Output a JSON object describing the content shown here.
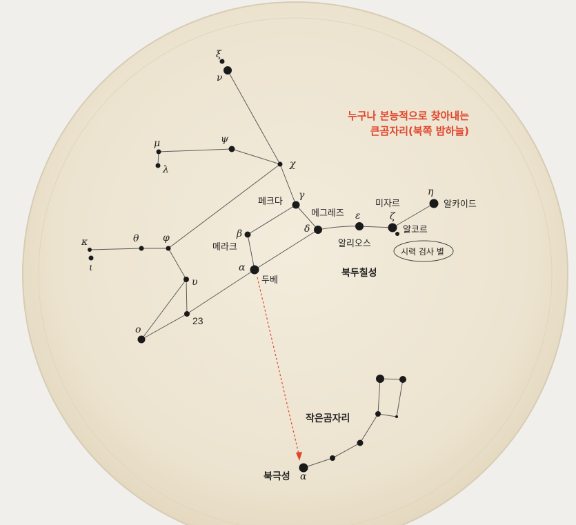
{
  "title": {
    "line1": "누구나 본능적으로 찾아내는",
    "line2": "큰곰자리(북쪽 밤하늘)"
  },
  "big_dipper_label": "북두칠성",
  "little_dipper_label": "작은곰자리",
  "eye_test_label": "시력 검사 별",
  "stars": {
    "xi": "ξ",
    "nu": "ν",
    "mu": "μ",
    "lambda": "λ",
    "psi": "ψ",
    "chi": "χ",
    "gamma": "γ",
    "delta": "δ",
    "epsilon": "ε",
    "zeta": "ζ",
    "eta": "η",
    "beta": "β",
    "alpha": "α",
    "kappa": "κ",
    "iota": "ι",
    "theta": "θ",
    "phi": "φ",
    "upsilon": "υ",
    "omicron": "ο",
    "num23": "23",
    "polaris_alpha": "α"
  },
  "names": {
    "phecda": "페크다",
    "megrez": "메그레즈",
    "mizar": "미자르",
    "alkaid": "알카이드",
    "alcor": "알코르",
    "alioth": "알리오스",
    "merak": "메라크",
    "dubhe": "두베",
    "polaris": "북극성"
  },
  "colors": {
    "title": "#e0452c",
    "pointer": "#e0452c",
    "lines": "#555555",
    "stars": "#1a1a1a",
    "chart_bg": "#ece4d2"
  }
}
